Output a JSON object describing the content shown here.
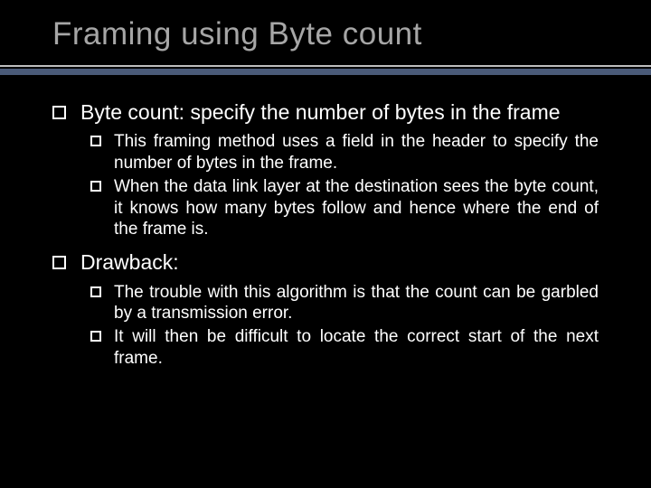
{
  "slide": {
    "title": "Framing using Byte count",
    "colors": {
      "background": "#000000",
      "title": "#a6a6a6",
      "text": "#ffffff",
      "divider_thin": "#bfbfbf",
      "divider_thick": "#4a5a78"
    },
    "typography": {
      "title_fontsize": 35,
      "l1_fontsize": 23,
      "l2_fontsize": 19,
      "font_family": "Arial"
    },
    "bullets": {
      "l1_square_size": 15,
      "l2_square_size": 12,
      "square_border": 2,
      "square_border_color": "#ffffff"
    },
    "items": [
      {
        "text": "Byte count: specify the number of bytes in the frame",
        "sub": [
          {
            "text": "This framing method uses a field in the header to specify the number of bytes in the frame."
          },
          {
            "text": "When the data link layer at the destination sees the byte count, it knows how many bytes follow and hence where the end of the frame is."
          }
        ]
      },
      {
        "text": "Drawback:",
        "sub": [
          {
            "text": "The trouble with this algorithm is that the count can be garbled by a transmission error."
          },
          {
            "text": "It will then be difficult to locate the correct start of the next frame."
          }
        ]
      }
    ]
  }
}
